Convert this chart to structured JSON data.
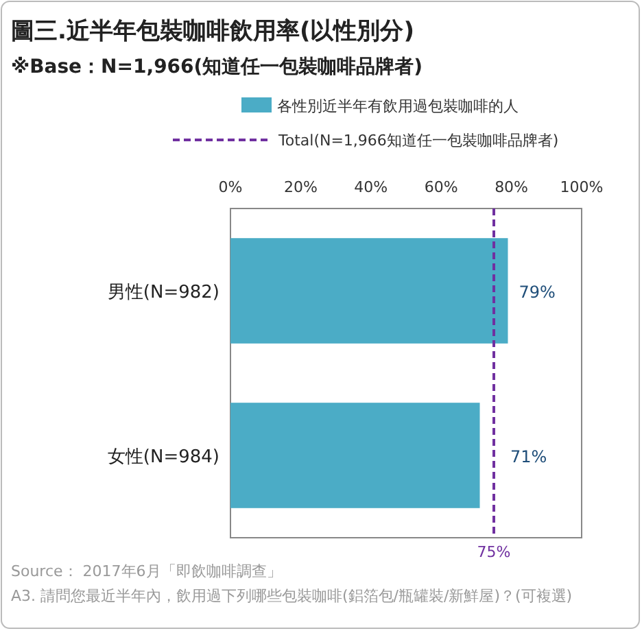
{
  "chart_data": {
    "type": "bar",
    "orientation": "horizontal",
    "title": "圖三.近半年包裝咖啡飲用率(以性別分)",
    "subtitle": "※Base：N=1,966(知道任一包裝咖啡品牌者)",
    "categories": [
      "男性(N=982)",
      "女性(N=984)"
    ],
    "series": [
      {
        "name": "各性別近半年有飲用過包裝咖啡的人",
        "color": "#4bacc6",
        "values": [
          79,
          71
        ],
        "value_labels": [
          "79%",
          "71%"
        ]
      }
    ],
    "xlim": [
      0,
      100
    ],
    "xticks": [
      {
        "value": 0,
        "label": "0%"
      },
      {
        "value": 20,
        "label": "20%"
      },
      {
        "value": 40,
        "label": "40%"
      },
      {
        "value": 60,
        "label": "60%"
      },
      {
        "value": 80,
        "label": "80%"
      },
      {
        "value": 100,
        "label": "100%"
      }
    ],
    "ref_lines": [
      {
        "axis": "x",
        "value": 75,
        "label": "75%",
        "color": "#7030a0",
        "line_style": "dashed"
      }
    ],
    "legend": "top",
    "annotations": [
      "Total(N=1,966知道任一包裝咖啡品牌者)",
      "Source： 2017年6月「即飲咖啡調查」",
      "A3. 請問您最近半年內，飲用過下列哪些包裝咖啡(鋁箔包/瓶罐裝/新鮮屋)？(可複選)"
    ]
  }
}
